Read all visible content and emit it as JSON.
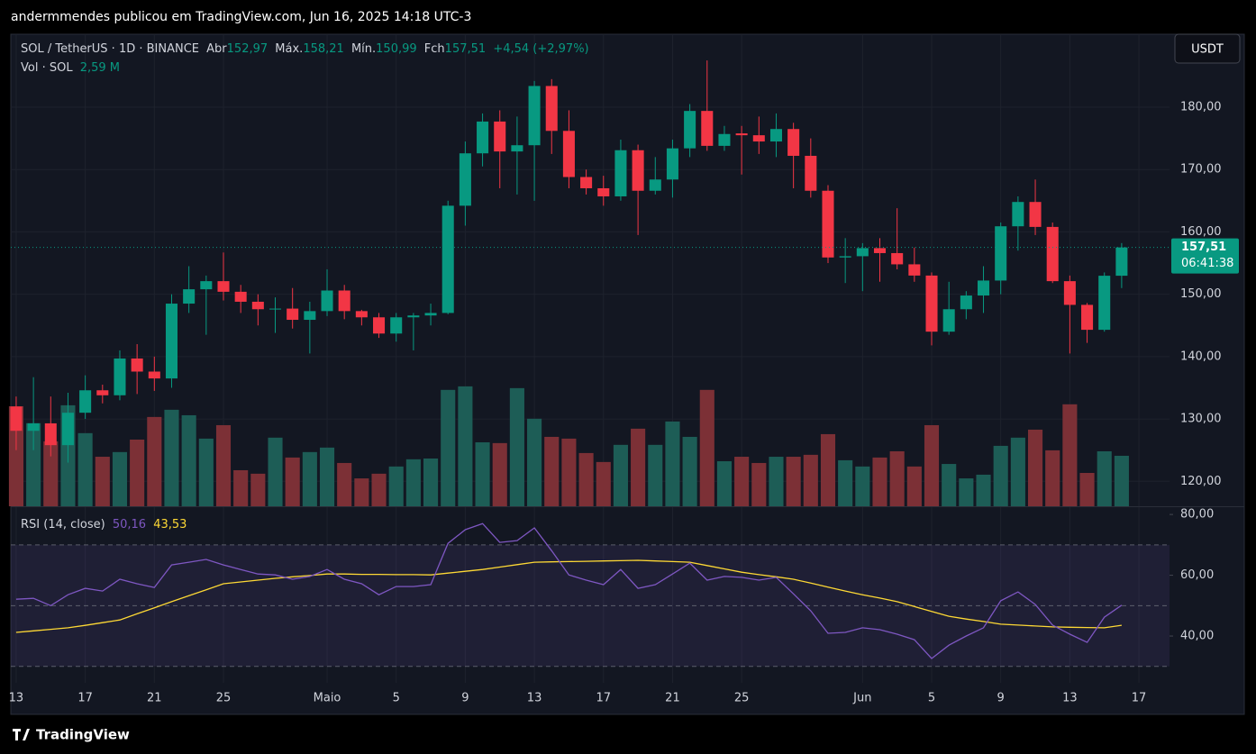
{
  "header": "andermmendes publicou em TradingView.com, Jun 16, 2025 14:18 UTC-3",
  "footer": "TradingView",
  "chart_data": {
    "type": "candlestick",
    "symbol": "SOL / TetherUS · 1D · BINANCE",
    "currency": "USDT",
    "legend": {
      "open_label": "Abr",
      "open": "152,97",
      "high_label": "Máx.",
      "high": "158,21",
      "low_label": "Mín.",
      "low": "150,99",
      "close_label": "Fch",
      "close": "157,51",
      "change": "+4,54 (+2,97%)"
    },
    "open": [
      132.0,
      128.1,
      129.3,
      125.8,
      131.0,
      134.6,
      133.8,
      139.7,
      137.6,
      136.5,
      148.5,
      150.8,
      152.1,
      150.4,
      148.8,
      147.6,
      147.7,
      145.9,
      147.3,
      150.6,
      147.3,
      146.3,
      143.7,
      146.3,
      146.6,
      147.0,
      164.2,
      172.6,
      177.7,
      172.9,
      173.9,
      183.4,
      176.2,
      168.8,
      167.0,
      165.7,
      173.1,
      166.6,
      168.4,
      173.4,
      179.4,
      173.8,
      175.8,
      175.5,
      174.5,
      176.5,
      172.2,
      166.6,
      155.9,
      156.1,
      157.4,
      156.6,
      154.8,
      153.0,
      144.0,
      147.6,
      149.8,
      152.2,
      160.9,
      164.8,
      160.8,
      152.1,
      148.3,
      144.3,
      152.97
    ],
    "high": [
      133.6,
      136.7,
      133.6,
      134.2,
      137.0,
      135.5,
      141.0,
      142.0,
      140.0,
      150.0,
      154.5,
      153.0,
      156.7,
      151.5,
      150.0,
      149.5,
      151.0,
      148.8,
      154.0,
      151.5,
      147.5,
      147.0,
      147.0,
      147.0,
      148.5,
      165.0,
      174.5,
      179.0,
      179.5,
      178.5,
      184.2,
      184.5,
      179.5,
      170.0,
      169.0,
      174.8,
      174.0,
      172.0,
      174.8,
      180.5,
      187.5,
      177.0,
      177.0,
      178.5,
      179.0,
      177.5,
      175.0,
      167.5,
      159.0,
      158.2,
      159.0,
      163.8,
      157.5,
      153.5,
      152.0,
      150.5,
      154.5,
      161.5,
      165.7,
      168.4,
      161.5,
      153.0,
      148.6,
      153.5,
      158.21
    ],
    "low": [
      125,
      125,
      124,
      123,
      130,
      132.5,
      133,
      134,
      134.5,
      135,
      147,
      143.5,
      149,
      147,
      145,
      143.8,
      144.5,
      140.5,
      146.5,
      146,
      145,
      143,
      142.4,
      141,
      145,
      146.8,
      161,
      170.5,
      167,
      166,
      165,
      172.5,
      167,
      166,
      164.2,
      165,
      159.5,
      166,
      165.5,
      172,
      173,
      173,
      169.2,
      172.5,
      172,
      167,
      165.5,
      155,
      151.8,
      150.5,
      152,
      154,
      152,
      141.8,
      143.5,
      146,
      147,
      150,
      157,
      159.5,
      151.8,
      140.5,
      142.2,
      144,
      150.99
    ],
    "close": [
      128.1,
      129.3,
      125.8,
      131.0,
      134.6,
      133.8,
      139.7,
      137.6,
      136.5,
      148.5,
      150.8,
      152.1,
      150.4,
      148.8,
      147.6,
      147.7,
      145.9,
      147.3,
      150.6,
      147.3,
      146.3,
      143.7,
      146.3,
      146.6,
      147.0,
      164.2,
      172.6,
      177.7,
      172.9,
      173.9,
      183.4,
      176.2,
      168.8,
      167.0,
      165.7,
      173.1,
      166.6,
      168.4,
      173.4,
      179.4,
      173.8,
      175.7,
      175.5,
      174.5,
      176.5,
      172.2,
      166.6,
      155.9,
      156.1,
      157.4,
      156.6,
      154.8,
      153.0,
      144.0,
      147.6,
      149.8,
      152.2,
      160.9,
      164.8,
      160.8,
      152.1,
      148.3,
      144.3,
      152.97,
      157.51
    ],
    "colors": {
      "up": "#089981",
      "down": "#f23645",
      "volume_up": "#1d5d56",
      "volume_down": "#7c3036"
    },
    "ylim": [
      116,
      191.7
    ],
    "yticks": [
      {
        "value": 120,
        "label": "120,00"
      },
      {
        "value": 130,
        "label": "130,00"
      },
      {
        "value": 140,
        "label": "140,00"
      },
      {
        "value": 150,
        "label": "150,00"
      },
      {
        "value": 160,
        "label": "160,00"
      },
      {
        "value": 170,
        "label": "170,00"
      },
      {
        "value": 180,
        "label": "180,00"
      }
    ],
    "xlim": [
      -0.31,
      66.77
    ],
    "xticks": [
      {
        "value": 0,
        "label": "13"
      },
      {
        "value": 4,
        "label": "17"
      },
      {
        "value": 8,
        "label": "21"
      },
      {
        "value": 12,
        "label": "25"
      },
      {
        "value": 18,
        "label": "Maio"
      },
      {
        "value": 22,
        "label": "5"
      },
      {
        "value": 26,
        "label": "9"
      },
      {
        "value": 30,
        "label": "13"
      },
      {
        "value": 34,
        "label": "17"
      },
      {
        "value": 38,
        "label": "21"
      },
      {
        "value": 42,
        "label": "25"
      },
      {
        "value": 49,
        "label": "Jun"
      },
      {
        "value": 53,
        "label": "5"
      },
      {
        "value": 57,
        "label": "9"
      },
      {
        "value": 61,
        "label": "13"
      },
      {
        "value": 65,
        "label": "17"
      }
    ],
    "grid": true,
    "price_label": "157,51",
    "countdown": "06:41:38",
    "volume": {
      "name": "Vol · SOL",
      "last_label": "2,59 M",
      "values": [
        5.13,
        4.26,
        3.33,
        5.18,
        3.75,
        2.54,
        2.78,
        3.42,
        4.58,
        4.95,
        4.67,
        3.47,
        4.16,
        1.85,
        1.67,
        3.52,
        2.5,
        2.78,
        3.01,
        2.22,
        1.43,
        1.67,
        2.04,
        2.41,
        2.45,
        5.97,
        6.15,
        3.28,
        3.24,
        6.06,
        4.49,
        3.56,
        3.47,
        2.73,
        2.27,
        3.15,
        3.98,
        3.15,
        4.35,
        3.56,
        5.97,
        2.31,
        2.54,
        2.22,
        2.54,
        2.54,
        2.64,
        3.7,
        2.36,
        2.04,
        2.5,
        2.82,
        2.04,
        4.16,
        2.17,
        1.43,
        1.62,
        3.1,
        3.52,
        3.93,
        2.87,
        5.23,
        1.71,
        2.82,
        2.59
      ]
    },
    "rsi": {
      "name": "RSI (14, close)",
      "last_label": "50,16",
      "ma_label": "43,53",
      "color": "#7e57c2",
      "ma_color": "#fdd835",
      "values": [
        52.1,
        52.4,
        50,
        53.6,
        55.7,
        54.8,
        58.7,
        57.2,
        56,
        63.4,
        64.3,
        65.2,
        63.4,
        61.9,
        60.4,
        60.1,
        58.7,
        59.6,
        61.9,
        58.7,
        57.2,
        53.6,
        56.3,
        56.3,
        56.9,
        70.5,
        75,
        77,
        70.8,
        71.4,
        75.6,
        68.1,
        60.1,
        58.4,
        56.9,
        61.9,
        55.7,
        56.9,
        60.4,
        64,
        58.4,
        59.6,
        59.3,
        58.4,
        59.3,
        53.9,
        48.3,
        40.9,
        41.2,
        42.7,
        42.1,
        40.6,
        38.8,
        32.6,
        37,
        40,
        42.7,
        51.6,
        54.5,
        50.4,
        43.6,
        40.6,
        37.9,
        46.2,
        50.16
      ],
      "ma": [
        41.2,
        41.7,
        42.2,
        42.7,
        43.5,
        44.4,
        45.3,
        47.3,
        49.3,
        51.3,
        53.3,
        55.2,
        57.2,
        57.8,
        58.4,
        59,
        59.5,
        59.9,
        60.4,
        60.4,
        60.3,
        60.3,
        60.2,
        60.2,
        60.1,
        60.7,
        61.3,
        61.9,
        62.7,
        63.5,
        64.3,
        64.4,
        64.5,
        64.6,
        64.7,
        64.8,
        64.9,
        64.7,
        64.5,
        64.3,
        63.2,
        62.1,
        61,
        60.2,
        59.5,
        58.7,
        57.4,
        56.1,
        54.8,
        53.6,
        52.5,
        51.3,
        49.7,
        48.1,
        46.5,
        45.6,
        44.8,
        43.9,
        43.6,
        43.3,
        43,
        42.9,
        42.8,
        42.7,
        43.53
      ],
      "ylim": [
        24.6,
        82.7
      ],
      "yticks": [
        {
          "value": 40,
          "label": "40,00"
        },
        {
          "value": 60,
          "label": "60,00"
        },
        {
          "value": 80,
          "label": "80,00"
        }
      ],
      "bands": [
        70,
        50,
        30
      ]
    }
  }
}
